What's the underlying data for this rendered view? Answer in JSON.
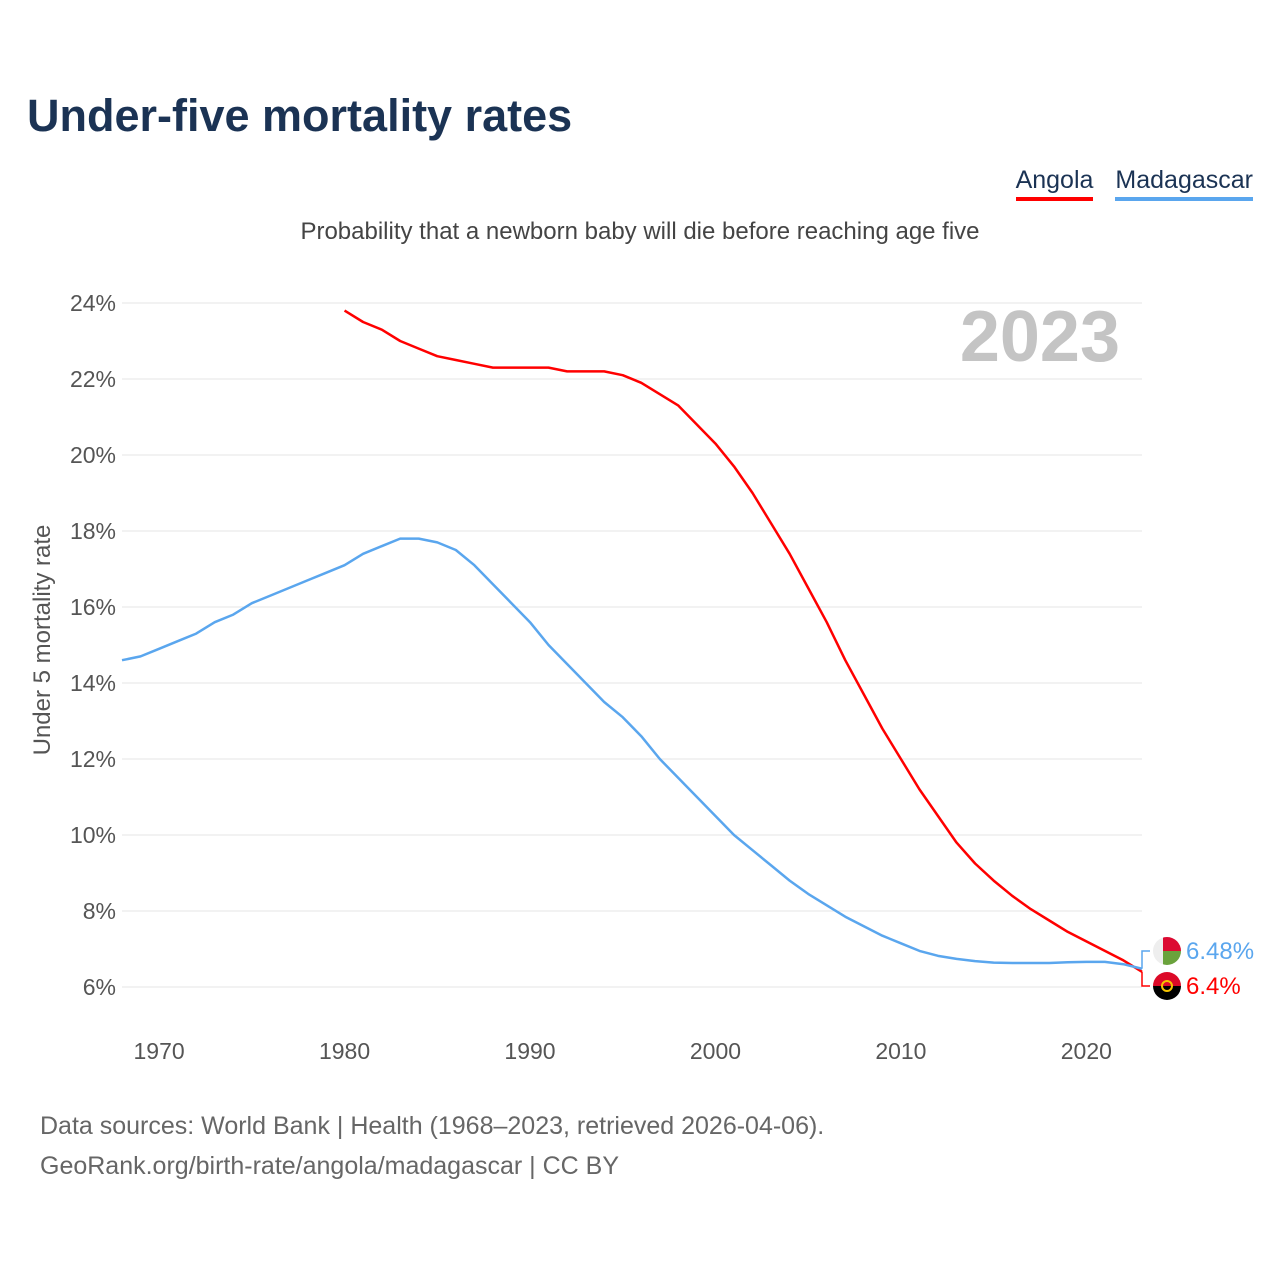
{
  "title": "Under-five mortality rates",
  "subtitle": "Probability that a newborn baby will die before reaching age five",
  "source_line1": "Data sources: World Bank | Health (1968–2023, retrieved 2026-04-06).",
  "source_line2": "GeoRank.org/birth-rate/angola/madagascar | CC BY",
  "chart_data": {
    "type": "line",
    "title": "Under-five mortality rates",
    "ylabel": "Under 5 mortality rate",
    "xlabel": "",
    "year_label": "2023",
    "xlim": [
      1968,
      2023
    ],
    "ylim": [
      6,
      24
    ],
    "x_ticks": [
      1970,
      1980,
      1990,
      2000,
      2010,
      2020
    ],
    "y_ticks": [
      "6%",
      "8%",
      "10%",
      "12%",
      "14%",
      "16%",
      "18%",
      "20%",
      "22%",
      "24%"
    ],
    "y_tick_values": [
      6,
      8,
      10,
      12,
      14,
      16,
      18,
      20,
      22,
      24
    ],
    "grid": true,
    "legend_placement": "top-right",
    "series": [
      {
        "name": "Angola",
        "color": "#ff0000",
        "end_label": "6.4%",
        "start_year": 1980,
        "values": [
          23.8,
          23.5,
          23.3,
          23.0,
          22.8,
          22.6,
          22.5,
          22.4,
          22.3,
          22.3,
          22.3,
          22.3,
          22.2,
          22.2,
          22.2,
          22.1,
          21.9,
          21.6,
          21.3,
          20.8,
          20.3,
          19.7,
          19.0,
          18.2,
          17.4,
          16.5,
          15.6,
          14.6,
          13.7,
          12.8,
          12.0,
          11.2,
          10.5,
          9.8,
          9.25,
          8.8,
          8.4,
          8.05,
          7.75,
          7.45,
          7.2,
          6.95,
          6.7,
          6.4
        ]
      },
      {
        "name": "Madagascar",
        "color": "#5aa6ee",
        "end_label": "6.48%",
        "start_year": 1968,
        "values": [
          14.6,
          14.7,
          14.9,
          15.1,
          15.3,
          15.6,
          15.8,
          16.1,
          16.3,
          16.5,
          16.7,
          16.9,
          17.1,
          17.4,
          17.6,
          17.8,
          17.8,
          17.7,
          17.5,
          17.1,
          16.6,
          16.1,
          15.6,
          15.0,
          14.5,
          14.0,
          13.5,
          13.1,
          12.6,
          12.0,
          11.5,
          11.0,
          10.5,
          10.0,
          9.6,
          9.2,
          8.8,
          8.45,
          8.15,
          7.85,
          7.6,
          7.35,
          7.15,
          6.95,
          6.82,
          6.74,
          6.68,
          6.64,
          6.63,
          6.63,
          6.63,
          6.65,
          6.66,
          6.66,
          6.6,
          6.48
        ]
      }
    ]
  }
}
